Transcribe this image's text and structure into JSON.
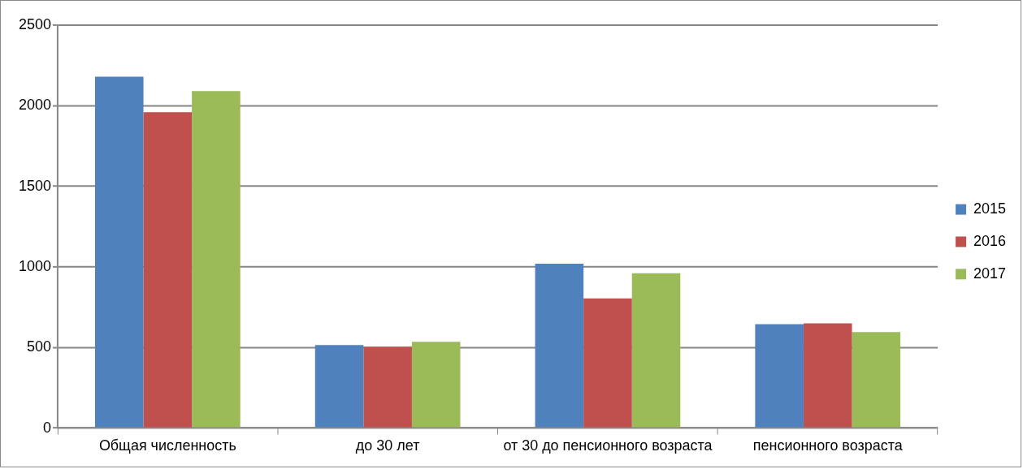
{
  "chart_data": {
    "type": "bar",
    "categories": [
      "Общая численность",
      "до 30 лет",
      "от 30 до пенсионного возраста",
      "пенсионного возраста"
    ],
    "series": [
      {
        "name": "2015",
        "color": "#4f81bd",
        "values": [
          2180,
          515,
          1020,
          645
        ]
      },
      {
        "name": "2016",
        "color": "#c0504d",
        "values": [
          1960,
          505,
          805,
          650
        ]
      },
      {
        "name": "2017",
        "color": "#9bbb59",
        "values": [
          2090,
          535,
          960,
          595
        ]
      }
    ],
    "ylim": [
      0,
      2500
    ],
    "yticks": [
      0,
      500,
      1000,
      1500,
      2000,
      2500
    ],
    "grid": "y",
    "legend": "right"
  }
}
